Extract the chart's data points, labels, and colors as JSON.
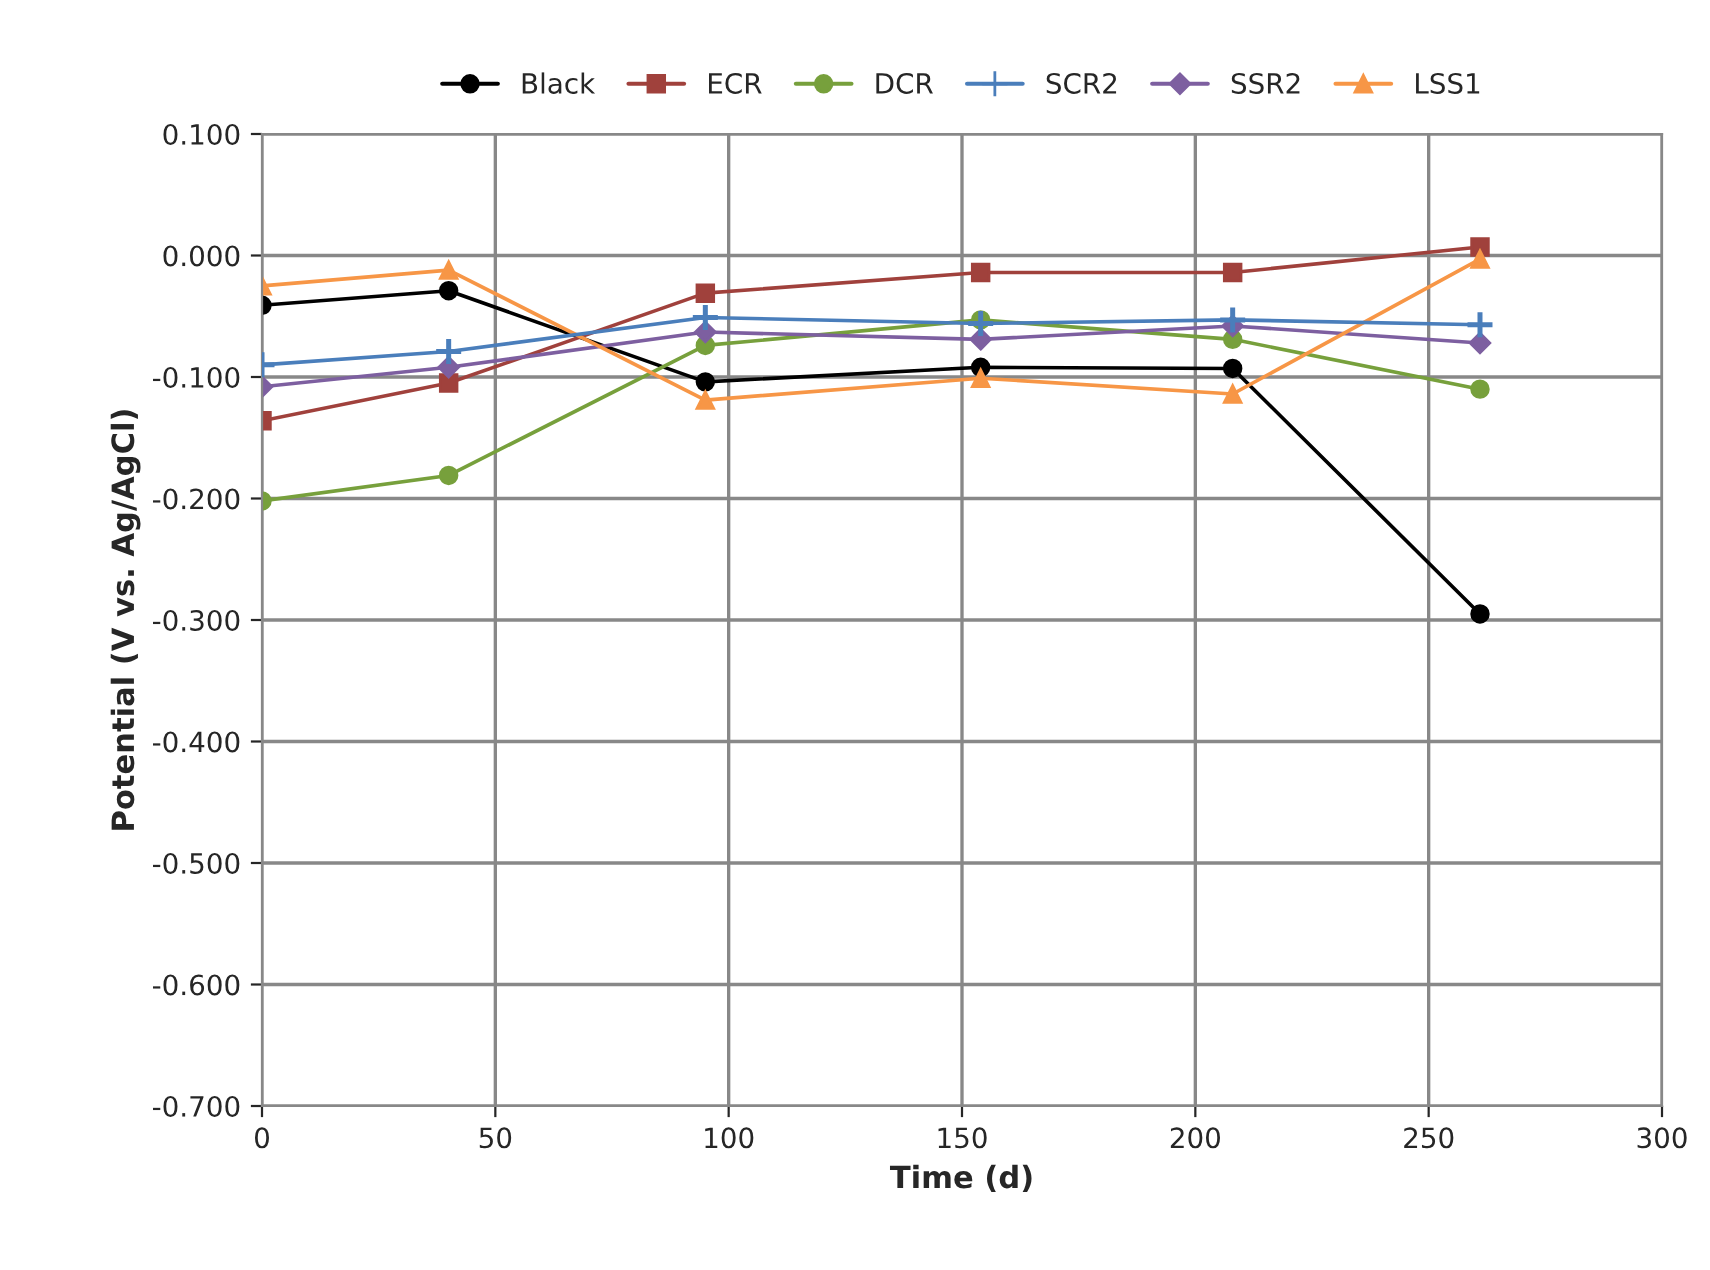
{
  "chart_data": {
    "type": "line",
    "xlabel": "Time (d)",
    "ylabel": "Potential (V vs. Ag/AgCl)",
    "x": [
      0,
      40,
      95,
      154,
      208,
      261
    ],
    "series": [
      {
        "name": "Black",
        "color": "#000000",
        "marker": "circle",
        "values": [
          -0.041,
          -0.029,
          -0.104,
          -0.092,
          -0.093,
          -0.295
        ]
      },
      {
        "name": "ECR",
        "color": "#a0413c",
        "marker": "square",
        "values": [
          -0.136,
          -0.105,
          -0.031,
          -0.014,
          -0.014,
          0.007
        ]
      },
      {
        "name": "DCR",
        "color": "#77a03c",
        "marker": "circle",
        "values": [
          -0.202,
          -0.181,
          -0.074,
          -0.053,
          -0.069,
          -0.11
        ]
      },
      {
        "name": "SCR2",
        "color": "#4a7ebb",
        "marker": "cross",
        "values": [
          -0.09,
          -0.079,
          -0.051,
          -0.056,
          -0.053,
          -0.057
        ]
      },
      {
        "name": "SSR2",
        "color": "#7d5fa0",
        "marker": "diamond",
        "values": [
          -0.108,
          -0.092,
          -0.063,
          -0.069,
          -0.058,
          -0.072
        ]
      },
      {
        "name": "LSS1",
        "color": "#f79646",
        "marker": "triangle",
        "values": [
          -0.025,
          -0.012,
          -0.119,
          -0.101,
          -0.114,
          -0.003
        ]
      }
    ],
    "xlim": [
      0,
      300
    ],
    "xticks": [
      0,
      50,
      100,
      150,
      200,
      250,
      300
    ],
    "ylim": [
      -0.7,
      0.1
    ],
    "yticks": [
      {
        "value": 0.1,
        "label": "0.100"
      },
      {
        "value": 0.0,
        "label": "0.000"
      },
      {
        "value": -0.1,
        "label": "-0.100"
      },
      {
        "value": -0.2,
        "label": "-0.200"
      },
      {
        "value": -0.3,
        "label": "-0.300"
      },
      {
        "value": -0.4,
        "label": "-0.400"
      },
      {
        "value": -0.5,
        "label": "-0.500"
      },
      {
        "value": -0.6,
        "label": "-0.600"
      },
      {
        "value": -0.7,
        "label": "-0.700"
      }
    ],
    "grid": true,
    "legend": "top"
  }
}
